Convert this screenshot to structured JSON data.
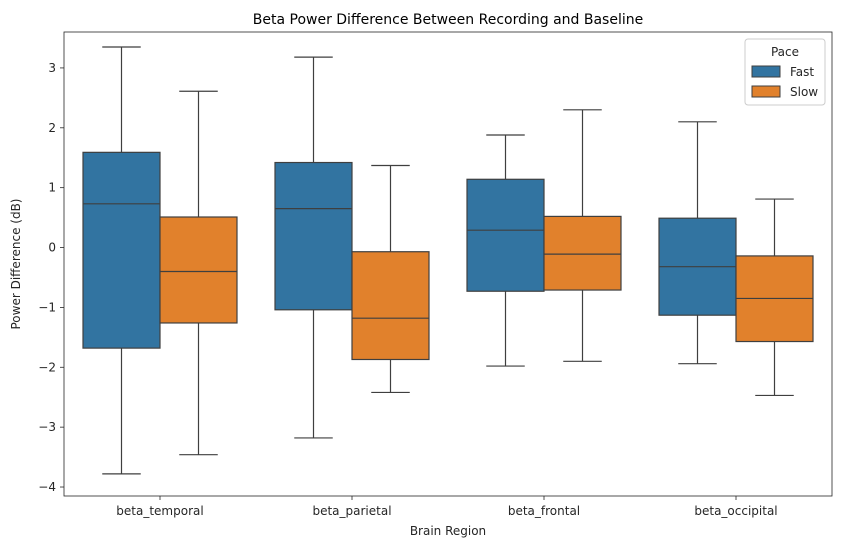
{
  "chart_data": {
    "type": "box",
    "title": "Beta Power Difference Between Recording and Baseline",
    "xlabel": "Brain Region",
    "ylabel": "Power Difference (dB)",
    "categories": [
      "beta_temporal",
      "beta_parietal",
      "beta_frontal",
      "beta_occipital"
    ],
    "ylim": [
      -4.15,
      3.6
    ],
    "yticks": [
      -4,
      -3,
      -2,
      -1,
      0,
      1,
      2,
      3
    ],
    "ytick_labels": [
      "−4",
      "−3",
      "−2",
      "−1",
      "0",
      "1",
      "2",
      "3"
    ],
    "grid": false,
    "legend": {
      "title": "Pace",
      "position": "top-right"
    },
    "series": [
      {
        "name": "Fast",
        "color": "#3274a1",
        "boxes": [
          {
            "min": -3.78,
            "q1": -1.68,
            "median": 0.73,
            "q3": 1.59,
            "max": 3.35
          },
          {
            "min": -3.18,
            "q1": -1.04,
            "median": 0.65,
            "q3": 1.42,
            "max": 3.18
          },
          {
            "min": -1.98,
            "q1": -0.73,
            "median": 0.29,
            "q3": 1.14,
            "max": 1.88
          },
          {
            "min": -1.94,
            "q1": -1.13,
            "median": -0.32,
            "q3": 0.49,
            "max": 2.1
          }
        ]
      },
      {
        "name": "Slow",
        "color": "#e1812c",
        "boxes": [
          {
            "min": -3.46,
            "q1": -1.26,
            "median": -0.4,
            "q3": 0.51,
            "max": 2.61
          },
          {
            "min": -2.42,
            "q1": -1.87,
            "median": -1.18,
            "q3": -0.07,
            "max": 1.37
          },
          {
            "min": -1.9,
            "q1": -0.71,
            "median": -0.11,
            "q3": 0.52,
            "max": 2.3
          },
          {
            "min": -2.47,
            "q1": -1.57,
            "median": -0.85,
            "q3": -0.14,
            "max": 0.81
          }
        ]
      }
    ]
  }
}
